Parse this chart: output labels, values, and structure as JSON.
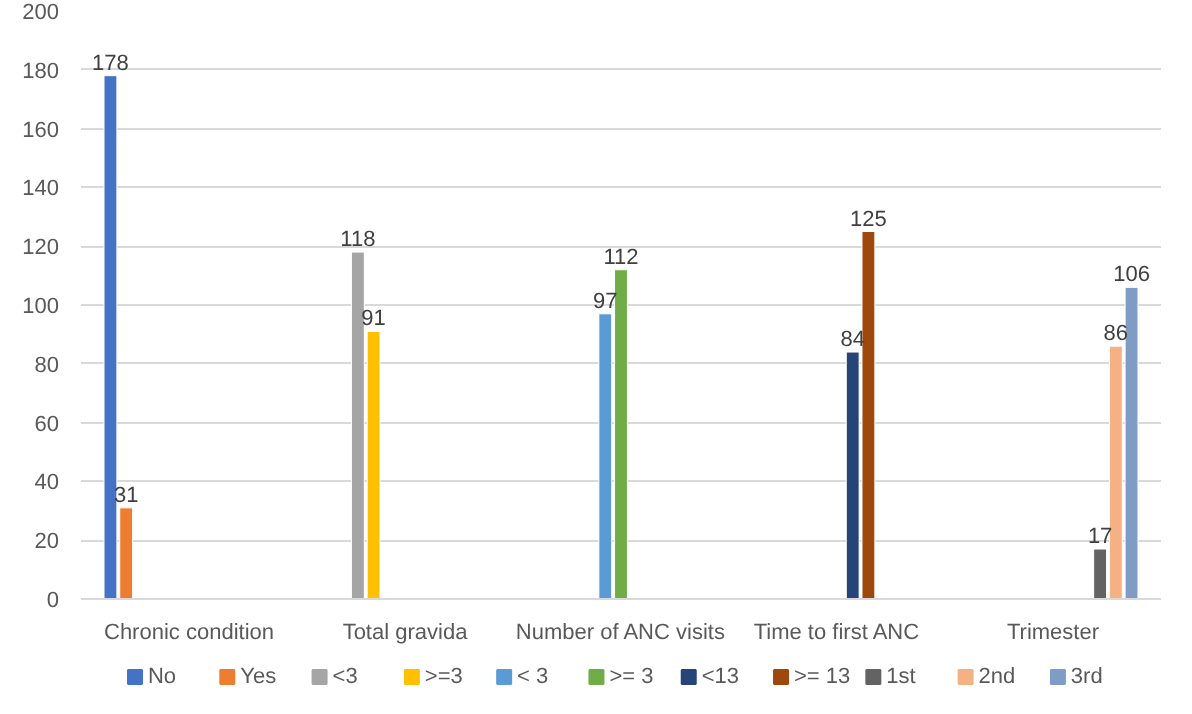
{
  "chart_data": {
    "type": "bar",
    "categories": [
      "Chronic condition",
      "Total gravida",
      "Number of ANC visits",
      "Time to first ANC",
      "Trimester"
    ],
    "ylim": [
      0,
      200
    ],
    "yticks": [
      0,
      20,
      40,
      60,
      80,
      100,
      120,
      140,
      160,
      180,
      200
    ],
    "grid": "y",
    "legend": "bottom",
    "data_labels": true,
    "series": [
      {
        "name": "No",
        "color": "#4472c4",
        "values": [
          178,
          null,
          null,
          null,
          null
        ]
      },
      {
        "name": "Yes",
        "color": "#ed7d31",
        "values": [
          31,
          null,
          null,
          null,
          null
        ]
      },
      {
        "name": "<3",
        "color": "#a5a5a5",
        "values": [
          null,
          118,
          null,
          null,
          null
        ]
      },
      {
        "name": ">=3",
        "color": "#ffc000",
        "values": [
          null,
          91,
          null,
          null,
          null
        ]
      },
      {
        "name": "< 3",
        "color": "#5b9bd5",
        "values": [
          null,
          null,
          97,
          null,
          null
        ]
      },
      {
        "name": ">= 3",
        "color": "#70ad47",
        "values": [
          null,
          null,
          112,
          null,
          null
        ]
      },
      {
        "name": "<13",
        "color": "#264478",
        "values": [
          null,
          null,
          null,
          84,
          null
        ]
      },
      {
        "name": ">= 13",
        "color": "#9e480e",
        "values": [
          null,
          null,
          null,
          125,
          null
        ]
      },
      {
        "name": "1st",
        "color": "#636363",
        "values": [
          null,
          null,
          null,
          null,
          17
        ]
      },
      {
        "name": "2nd",
        "color": "#f4b183",
        "values": [
          null,
          null,
          null,
          null,
          86
        ]
      },
      {
        "name": "3rd",
        "color": "#7f9cc4",
        "values": [
          null,
          null,
          null,
          null,
          106
        ]
      }
    ]
  }
}
